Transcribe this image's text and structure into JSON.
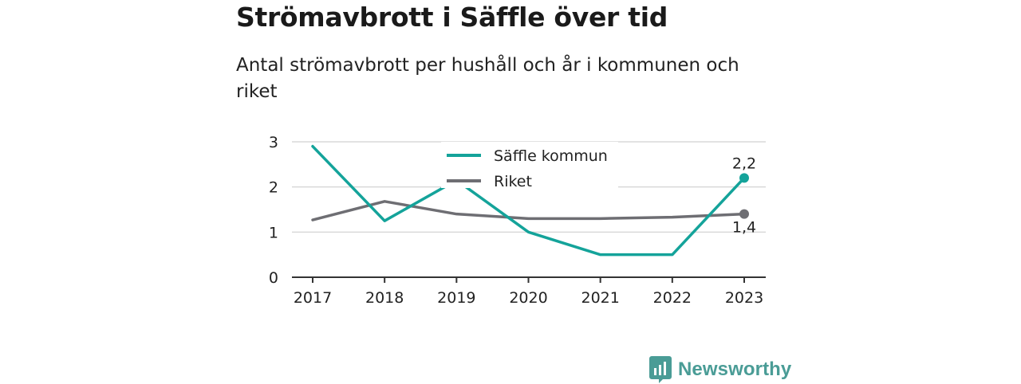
{
  "title": "Strömavbrott i Säffle över tid",
  "subtitle": "Antal strömavbrott per hushåll och år i kommunen och riket",
  "brand": "Newsworthy",
  "chart_data": {
    "type": "line",
    "x": [
      "2017",
      "2018",
      "2019",
      "2020",
      "2021",
      "2022",
      "2023"
    ],
    "ylim": [
      0,
      3
    ],
    "yticks": [
      "0",
      "1",
      "2",
      "3"
    ],
    "grid": true,
    "legend_position": "top-center",
    "series": [
      {
        "name": "Säffle kommun",
        "color": "#14a39a",
        "values": [
          2.9,
          1.25,
          2.15,
          1.0,
          0.5,
          0.5,
          2.2
        ],
        "end_label": "2,2"
      },
      {
        "name": "Riket",
        "color": "#6e6e73",
        "values": [
          1.27,
          1.68,
          1.4,
          1.3,
          1.3,
          1.33,
          1.4
        ],
        "end_label": "1,4"
      }
    ]
  }
}
